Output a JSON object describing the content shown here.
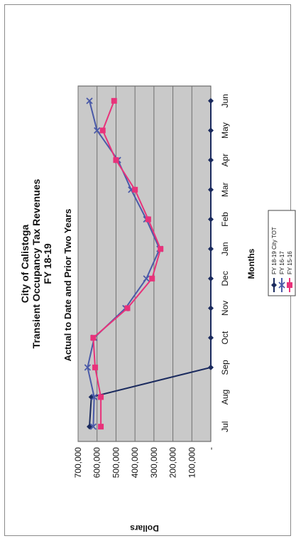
{
  "chart_data": {
    "type": "line",
    "title": [
      "City of Calistoga",
      "Transient Occupancy Tax Revenues",
      "FY 18-19"
    ],
    "subtitle": "Actual to Date and Prior Two Years",
    "xlabel": "Months",
    "ylabel": "Dollars",
    "categories": [
      "Jul",
      "Aug",
      "Sep",
      "Oct",
      "Nov",
      "Dec",
      "Jan",
      "Feb",
      "Mar",
      "Apr",
      "May",
      "Jun"
    ],
    "ylim": [
      0,
      700000
    ],
    "yticks": [
      0,
      100000,
      200000,
      300000,
      400000,
      500000,
      600000,
      700000
    ],
    "ytick_labels": [
      "-",
      "100,000",
      "200,000",
      "300,000",
      "400,000",
      "500,000",
      "600,000",
      "700,000"
    ],
    "grid": true,
    "legend_position": "bottom",
    "orientation": "rotated-90-clockwise",
    "series": [
      {
        "name": "FY 18-19 City TOT",
        "color": "#1a2a5e",
        "marker": "diamond",
        "values": [
          640000,
          630000,
          0,
          0,
          0,
          0,
          0,
          0,
          0,
          0,
          0,
          0
        ]
      },
      {
        "name": "FY 16-17",
        "color": "#4a5aa8",
        "marker": "x",
        "values": [
          620000,
          615000,
          650000,
          615000,
          450000,
          340000,
          270000,
          340000,
          420000,
          490000,
          600000,
          640000
        ]
      },
      {
        "name": "FY 15-16",
        "color": "#e8327a",
        "marker": "square",
        "values": [
          580000,
          580000,
          610000,
          620000,
          440000,
          310000,
          265000,
          330000,
          400000,
          500000,
          570000,
          510000
        ]
      }
    ]
  }
}
